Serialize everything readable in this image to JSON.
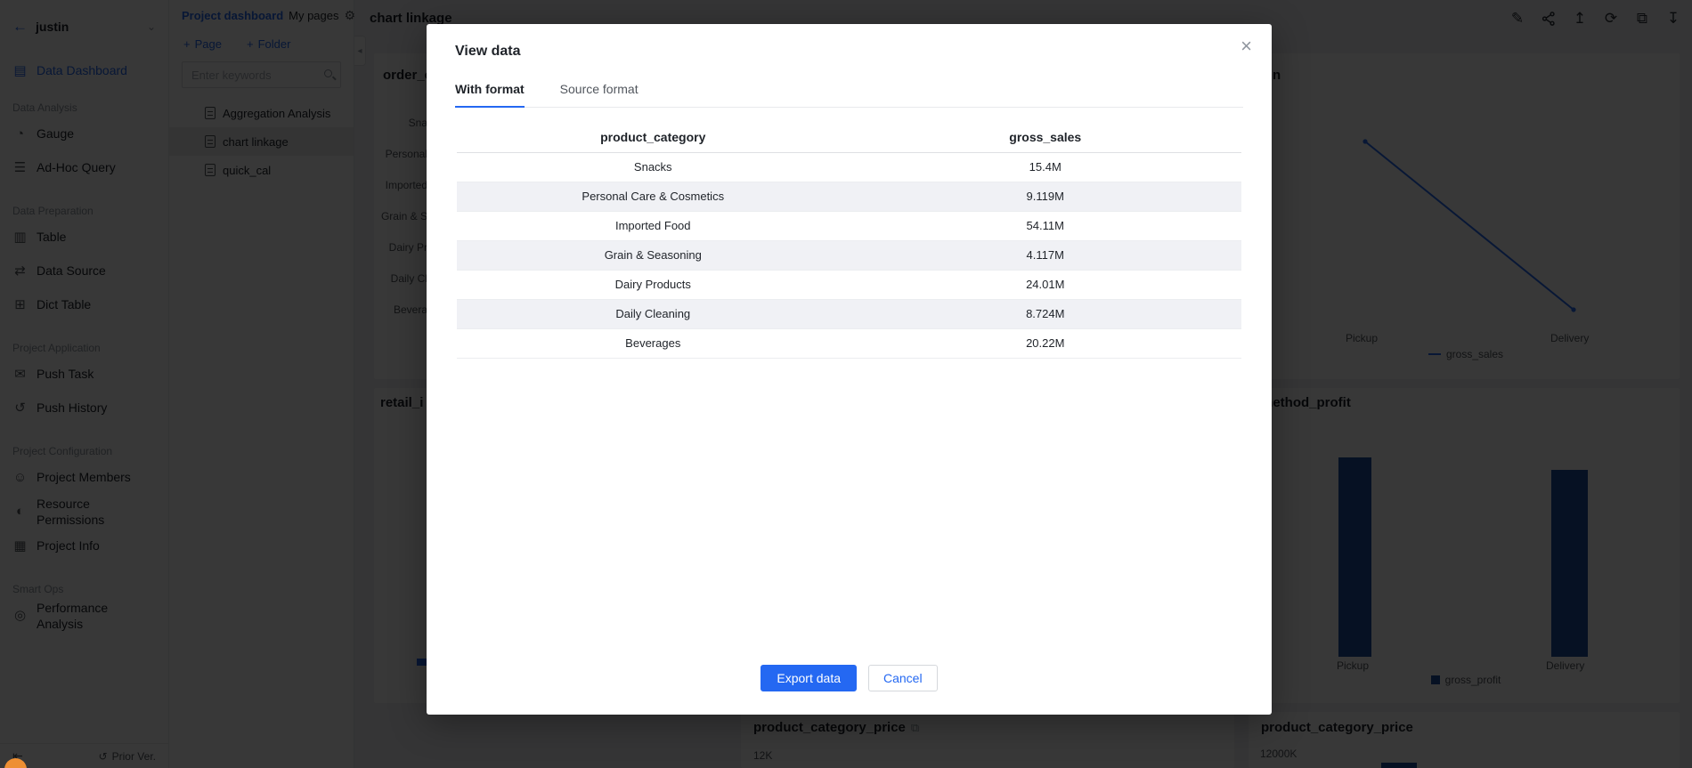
{
  "colors": {
    "accent": "#2468f2",
    "bar_navy": "#1c4da1",
    "line_blue": "#2468f2",
    "orange_float": "#ee8f33"
  },
  "sidebar": {
    "user": "justin",
    "primary_item": {
      "label": "Data Dashboard",
      "icon": "dashboard-icon"
    },
    "sections": [
      {
        "title": "Data Analysis",
        "items": [
          {
            "label": "Gauge",
            "icon": "gauge-icon"
          },
          {
            "label": "Ad-Hoc Query",
            "icon": "adhoc-query-icon"
          }
        ]
      },
      {
        "title": "Data Preparation",
        "items": [
          {
            "label": "Table",
            "icon": "table-icon"
          },
          {
            "label": "Data Source",
            "icon": "data-source-icon"
          },
          {
            "label": "Dict Table",
            "icon": "dict-table-icon"
          }
        ]
      },
      {
        "title": "Project Application",
        "items": [
          {
            "label": "Push Task",
            "icon": "push-task-icon"
          },
          {
            "label": "Push History",
            "icon": "push-history-icon"
          }
        ]
      },
      {
        "title": "Project Configuration",
        "items": [
          {
            "label": "Project Members",
            "icon": "project-members-icon"
          },
          {
            "label": "Resource Permissions",
            "icon": "resource-permissions-icon"
          },
          {
            "label": "Project Info",
            "icon": "project-info-icon"
          }
        ]
      },
      {
        "title": "Smart Ops",
        "items": [
          {
            "label": "Performance Analysis",
            "icon": "performance-analysis-icon"
          }
        ]
      }
    ],
    "footer": {
      "prior_ver_label": "Prior Ver."
    }
  },
  "pages_panel": {
    "breadcrumb": {
      "primary": "Project dashboard",
      "secondary": "My pages"
    },
    "new_page_label": "Page",
    "new_folder_label": "Folder",
    "search_placeholder": "Enter keywords",
    "items": [
      {
        "label": "Aggregation Analysis",
        "selected": false
      },
      {
        "label": "chart linkage",
        "selected": true
      },
      {
        "label": "quick_cal",
        "selected": false
      }
    ]
  },
  "main": {
    "title": "chart linkage",
    "toolbar_icons": [
      "edit-icon",
      "share-icon",
      "upload-icon",
      "refresh-icon",
      "duplicate-icon",
      "download-icon"
    ]
  },
  "cards": {
    "order": {
      "title_fragment": "order_c",
      "category_fragments": [
        "Sna",
        "Personal",
        "Imported",
        "Grain & S",
        "Dairy Pr",
        "Daily Cl",
        "Bevera"
      ]
    },
    "method_sales": {
      "title_fragment": "n",
      "x_labels": [
        "Pickup",
        "Delivery"
      ],
      "legend": "gross_sales"
    },
    "retail": {
      "title_fragment": "retail_i"
    },
    "method_profit": {
      "title_fragment": "method_profit",
      "x_labels": [
        "Pickup",
        "Delivery"
      ],
      "legend": "gross_profit"
    },
    "price_mid": {
      "title": "product_category_price",
      "axis_top_label": "12K"
    },
    "price_right": {
      "title": "product_category_price",
      "axis_top_label": "12000K"
    }
  },
  "modal": {
    "title": "View data",
    "tabs": [
      "With format",
      "Source format"
    ],
    "active_tab": "With format",
    "columns": [
      "product_category",
      "gross_sales"
    ],
    "rows": [
      [
        "Snacks",
        "15.4M"
      ],
      [
        "Personal Care & Cosmetics",
        "9.119M"
      ],
      [
        "Imported Food",
        "54.11M"
      ],
      [
        "Grain & Seasoning",
        "4.117M"
      ],
      [
        "Dairy Products",
        "24.01M"
      ],
      [
        "Daily Cleaning",
        "8.724M"
      ],
      [
        "Beverages",
        "20.22M"
      ]
    ],
    "export_label": "Export data",
    "cancel_label": "Cancel"
  },
  "chart_data": [
    {
      "type": "table",
      "title": "View data (With format)",
      "columns": [
        "product_category",
        "gross_sales"
      ],
      "rows": [
        [
          "Snacks",
          "15.4M"
        ],
        [
          "Personal Care & Cosmetics",
          "9.119M"
        ],
        [
          "Imported Food",
          "54.11M"
        ],
        [
          "Grain & Seasoning",
          "4.117M"
        ],
        [
          "Dairy Products",
          "24.01M"
        ],
        [
          "Daily Cleaning",
          "8.724M"
        ],
        [
          "Beverages",
          "20.22M"
        ]
      ]
    },
    {
      "type": "line",
      "title": "partially hidden (visible fragment: n)",
      "categories": [
        "Pickup",
        "Delivery"
      ],
      "series": [
        {
          "name": "gross_sales",
          "values_relative": [
            1.0,
            0.35
          ]
        }
      ],
      "legend_position": "bottom",
      "note": "descending blue line; y-axis hidden behind dialog"
    },
    {
      "type": "bar",
      "title": "method_profit (visible fragment: ethod_profit)",
      "categories": [
        "Pickup",
        "Delivery"
      ],
      "series": [
        {
          "name": "gross_profit",
          "values_relative": [
            1.0,
            0.94
          ]
        }
      ],
      "legend_position": "bottom",
      "note": "dark navy bars; y-axis hidden behind dialog"
    },
    {
      "type": "bar",
      "title": "product_category_price",
      "y_axis_top_label": "12K",
      "note": "mostly cut off at screen bottom"
    },
    {
      "type": "bar",
      "title": "product_category_price",
      "y_axis_top_label": "12000K",
      "note": "mostly cut off at screen bottom; one navy bar sliver visible"
    }
  ]
}
